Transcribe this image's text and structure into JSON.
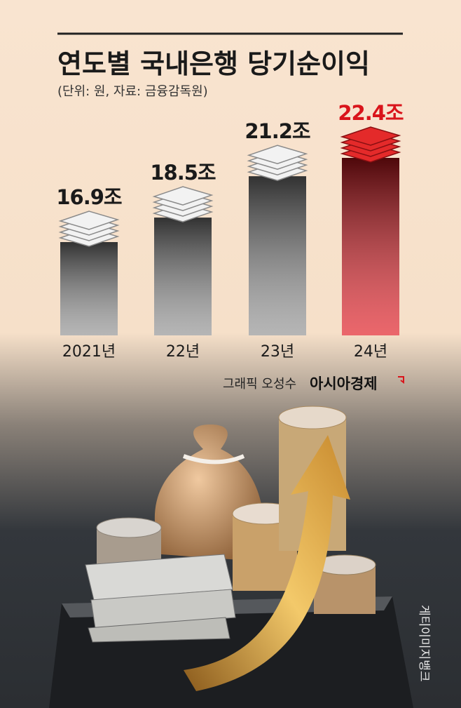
{
  "chart_data": {
    "type": "bar",
    "title": "연도별 국내은행 당기순이익",
    "subtitle": "(단위: 원, 자료: 금융감독원)",
    "categories": [
      "2021년",
      "22년",
      "23년",
      "24년"
    ],
    "values": [
      16.9,
      18.5,
      21.2,
      22.4
    ],
    "value_labels": [
      "16.9조",
      "18.5조",
      "21.2조",
      "22.4조"
    ],
    "colors": [
      "#8e8e8e",
      "#8e8e8e",
      "#8e8e8e",
      "#e0141c"
    ],
    "value_label_colors": [
      "#1a1a1a",
      "#1a1a1a",
      "#1a1a1a",
      "#d9141b"
    ]
  },
  "credit": {
    "graphic": "그래픽 오성수",
    "publisher": "아시아경제",
    "photo": "게티이미지뱅크"
  }
}
